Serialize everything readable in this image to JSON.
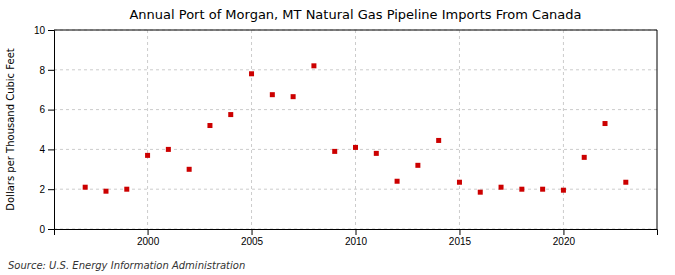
{
  "chart_data": {
    "type": "scatter",
    "title": "Annual Port of Morgan, MT Natural Gas Pipeline Imports From Canada",
    "ylabel": "Dollars per Thousand Cubic Feet",
    "annotations": [
      "Source: U.S. Energy Information Administration"
    ],
    "color": "#cc0000",
    "marker": "square",
    "grid": true,
    "xlim": [
      1995.5,
      2024.5
    ],
    "ylim": [
      0,
      10
    ],
    "xticks": [
      2000,
      2005,
      2010,
      2015,
      2020
    ],
    "yticks": [
      0,
      2,
      4,
      6,
      8,
      10
    ],
    "x": [
      1997,
      1998,
      1999,
      2000,
      2001,
      2002,
      2003,
      2004,
      2005,
      2006,
      2007,
      2008,
      2009,
      2010,
      2011,
      2012,
      2013,
      2014,
      2015,
      2016,
      2017,
      2018,
      2019,
      2020,
      2021,
      2022,
      2023
    ],
    "values": [
      2.1,
      1.9,
      2.0,
      3.7,
      4.0,
      3.0,
      5.2,
      5.75,
      7.8,
      6.75,
      6.65,
      8.2,
      3.9,
      4.1,
      3.8,
      2.4,
      3.2,
      4.45,
      2.35,
      1.85,
      2.1,
      2.0,
      2.0,
      1.95,
      3.6,
      5.3,
      2.35
    ]
  }
}
